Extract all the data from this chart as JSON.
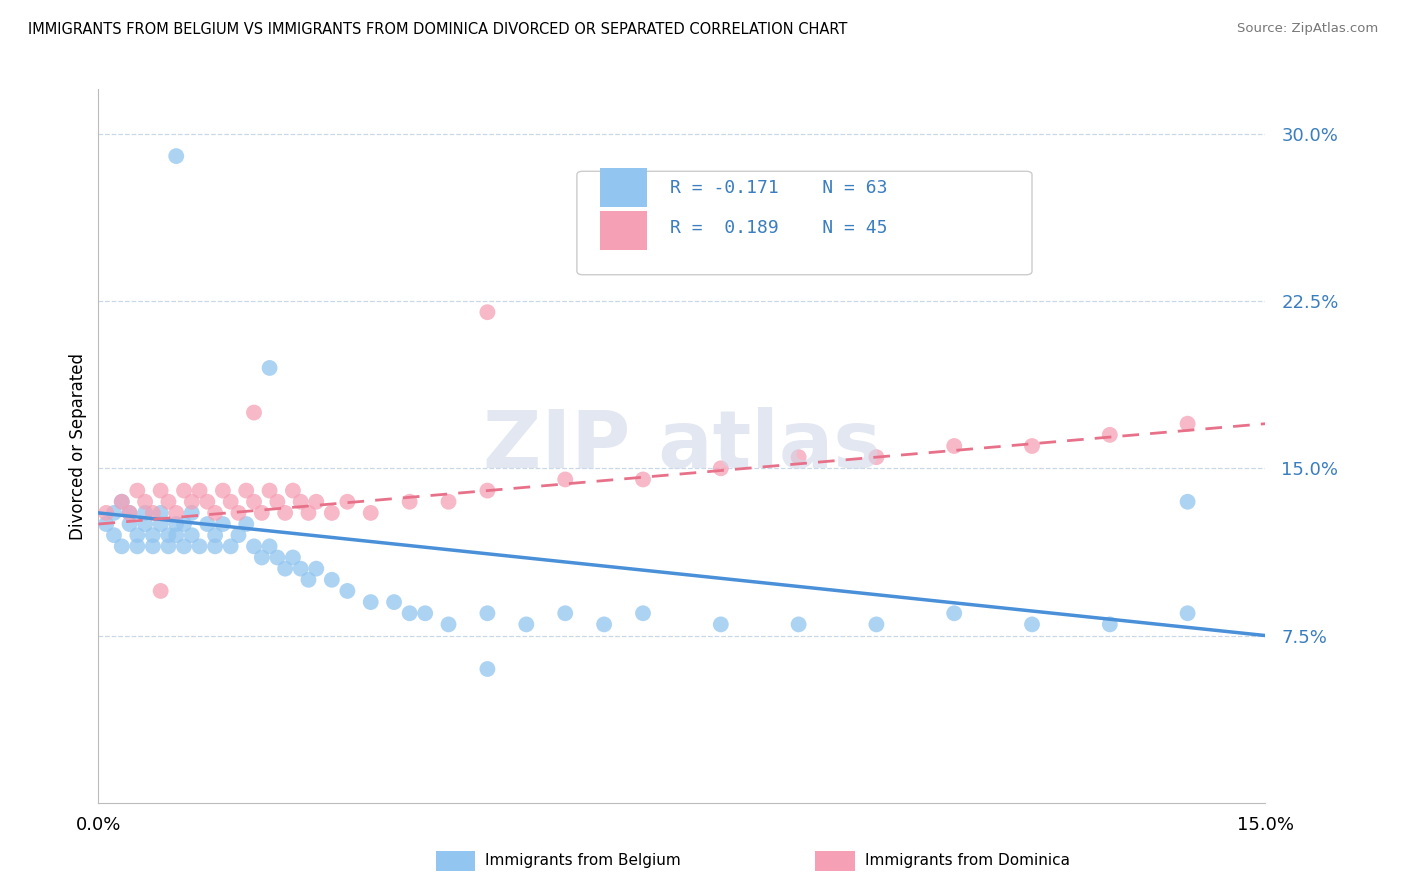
{
  "title": "IMMIGRANTS FROM BELGIUM VS IMMIGRANTS FROM DOMINICA DIVORCED OR SEPARATED CORRELATION CHART",
  "source": "Source: ZipAtlas.com",
  "ylabel": "Divorced or Separated",
  "color_belgium": "#92c5f0",
  "color_dominica": "#f5a0b5",
  "color_trend_belgium": "#4a90d9",
  "color_trend_dominica": "#e8718a",
  "color_text_blue": "#3a7ebf",
  "color_legend_text": "#3a7ebf",
  "background": "#ffffff",
  "grid_color": "#c8d8e8",
  "xlim": [
    0.0,
    0.15
  ],
  "ylim": [
    0.0,
    0.32
  ],
  "yticks": [
    0.075,
    0.15,
    0.225,
    0.3
  ],
  "ytick_labels": [
    "7.5%",
    "15.0%",
    "22.5%",
    "30.0%"
  ],
  "xtick_positions": [
    0.0,
    0.025,
    0.05,
    0.075,
    0.1,
    0.125,
    0.15
  ],
  "watermark": "ZIPatlas",
  "bel_x": [
    0.001,
    0.002,
    0.002,
    0.003,
    0.003,
    0.004,
    0.004,
    0.005,
    0.005,
    0.006,
    0.006,
    0.007,
    0.007,
    0.008,
    0.008,
    0.009,
    0.009,
    0.01,
    0.01,
    0.011,
    0.011,
    0.012,
    0.012,
    0.013,
    0.014,
    0.015,
    0.015,
    0.016,
    0.017,
    0.018,
    0.019,
    0.02,
    0.021,
    0.022,
    0.023,
    0.024,
    0.025,
    0.026,
    0.027,
    0.028,
    0.03,
    0.032,
    0.035,
    0.038,
    0.04,
    0.042,
    0.045,
    0.05,
    0.055,
    0.06,
    0.065,
    0.07,
    0.08,
    0.09,
    0.1,
    0.11,
    0.12,
    0.13,
    0.14,
    0.01,
    0.022,
    0.14,
    0.05
  ],
  "bel_y": [
    0.125,
    0.13,
    0.12,
    0.135,
    0.115,
    0.125,
    0.13,
    0.12,
    0.115,
    0.13,
    0.125,
    0.12,
    0.115,
    0.125,
    0.13,
    0.12,
    0.115,
    0.125,
    0.12,
    0.115,
    0.125,
    0.13,
    0.12,
    0.115,
    0.125,
    0.12,
    0.115,
    0.125,
    0.115,
    0.12,
    0.125,
    0.115,
    0.11,
    0.115,
    0.11,
    0.105,
    0.11,
    0.105,
    0.1,
    0.105,
    0.1,
    0.095,
    0.09,
    0.09,
    0.085,
    0.085,
    0.08,
    0.085,
    0.08,
    0.085,
    0.08,
    0.085,
    0.08,
    0.08,
    0.08,
    0.085,
    0.08,
    0.08,
    0.085,
    0.29,
    0.195,
    0.135,
    0.06
  ],
  "dom_x": [
    0.001,
    0.003,
    0.004,
    0.005,
    0.006,
    0.007,
    0.008,
    0.009,
    0.01,
    0.011,
    0.012,
    0.013,
    0.014,
    0.015,
    0.016,
    0.017,
    0.018,
    0.019,
    0.02,
    0.021,
    0.022,
    0.023,
    0.024,
    0.025,
    0.026,
    0.027,
    0.028,
    0.03,
    0.032,
    0.035,
    0.04,
    0.045,
    0.05,
    0.06,
    0.07,
    0.08,
    0.09,
    0.1,
    0.11,
    0.12,
    0.13,
    0.14,
    0.05,
    0.02,
    0.008
  ],
  "dom_y": [
    0.13,
    0.135,
    0.13,
    0.14,
    0.135,
    0.13,
    0.14,
    0.135,
    0.13,
    0.14,
    0.135,
    0.14,
    0.135,
    0.13,
    0.14,
    0.135,
    0.13,
    0.14,
    0.135,
    0.13,
    0.14,
    0.135,
    0.13,
    0.14,
    0.135,
    0.13,
    0.135,
    0.13,
    0.135,
    0.13,
    0.135,
    0.135,
    0.14,
    0.145,
    0.145,
    0.15,
    0.155,
    0.155,
    0.16,
    0.16,
    0.165,
    0.17,
    0.22,
    0.175,
    0.095
  ]
}
